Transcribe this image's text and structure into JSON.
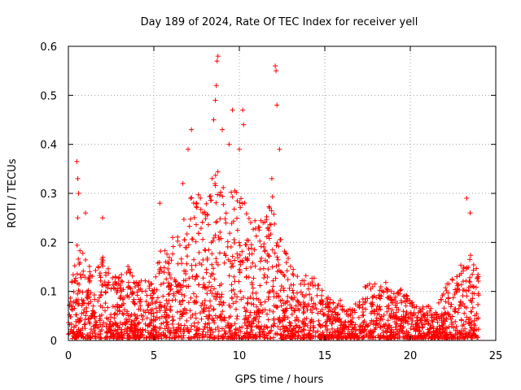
{
  "chart_data": {
    "type": "scatter",
    "title": "Day 189 of 2024, Rate Of TEC Index for receiver yell",
    "xlabel": "GPS time / hours",
    "ylabel": "ROTI / TECUs",
    "xlim": [
      0,
      25
    ],
    "ylim": [
      0,
      0.6
    ],
    "x_ticks": [
      0,
      5,
      10,
      15,
      20,
      25
    ],
    "y_ticks": [
      0,
      0.1,
      0.2,
      0.3,
      0.4,
      0.5,
      0.6
    ],
    "x_tick_labels": [
      "0",
      "5",
      "10",
      "15",
      "20",
      "25"
    ],
    "y_tick_labels": [
      "0",
      "0.1",
      "0.2",
      "0.3",
      "0.4",
      "0.5",
      "0.6"
    ],
    "grid": true,
    "marker": "+",
    "series_color": "#ff0000",
    "series": [
      {
        "name": "ROTI",
        "envelope": {
          "description": "upper envelope of dense point cloud (hour, roti)",
          "x": [
            0,
            0.5,
            1,
            1.5,
            2,
            2.5,
            3,
            3.5,
            4,
            4.5,
            5,
            5.5,
            6,
            6.5,
            7,
            7.5,
            8,
            8.5,
            9,
            9.5,
            10,
            10.5,
            11,
            11.5,
            12,
            12.5,
            13,
            13.5,
            14,
            14.5,
            15,
            15.5,
            16,
            16.5,
            17,
            17.5,
            18,
            18.5,
            19,
            19.5,
            20,
            20.5,
            21,
            21.5,
            22,
            22.5,
            23,
            23.5,
            24
          ],
          "y": [
            0.08,
            0.2,
            0.17,
            0.14,
            0.17,
            0.14,
            0.13,
            0.15,
            0.12,
            0.12,
            0.12,
            0.2,
            0.18,
            0.22,
            0.28,
            0.3,
            0.27,
            0.35,
            0.33,
            0.32,
            0.3,
            0.28,
            0.24,
            0.25,
            0.3,
            0.2,
            0.15,
            0.13,
            0.15,
            0.13,
            0.1,
            0.08,
            0.08,
            0.06,
            0.08,
            0.12,
            0.11,
            0.12,
            0.12,
            0.1,
            0.08,
            0.06,
            0.07,
            0.06,
            0.1,
            0.14,
            0.16,
            0.18,
            0.13
          ]
        },
        "outliers": {
          "x": [
            0.5,
            0.55,
            0.6,
            0.55,
            1.0,
            2.0,
            5.35,
            6.1,
            6.7,
            7.2,
            7.0,
            8.5,
            8.6,
            8.65,
            8.7,
            8.75,
            9.0,
            9.4,
            9.6,
            10.0,
            10.2,
            10.25,
            12.1,
            12.15,
            12.2,
            12.35,
            11.9,
            23.3,
            23.5
          ],
          "y": [
            0.365,
            0.33,
            0.3,
            0.25,
            0.26,
            0.25,
            0.28,
            0.21,
            0.32,
            0.43,
            0.39,
            0.45,
            0.49,
            0.52,
            0.57,
            0.58,
            0.43,
            0.4,
            0.47,
            0.39,
            0.47,
            0.44,
            0.56,
            0.55,
            0.48,
            0.39,
            0.33,
            0.29,
            0.26
          ]
        }
      }
    ]
  }
}
